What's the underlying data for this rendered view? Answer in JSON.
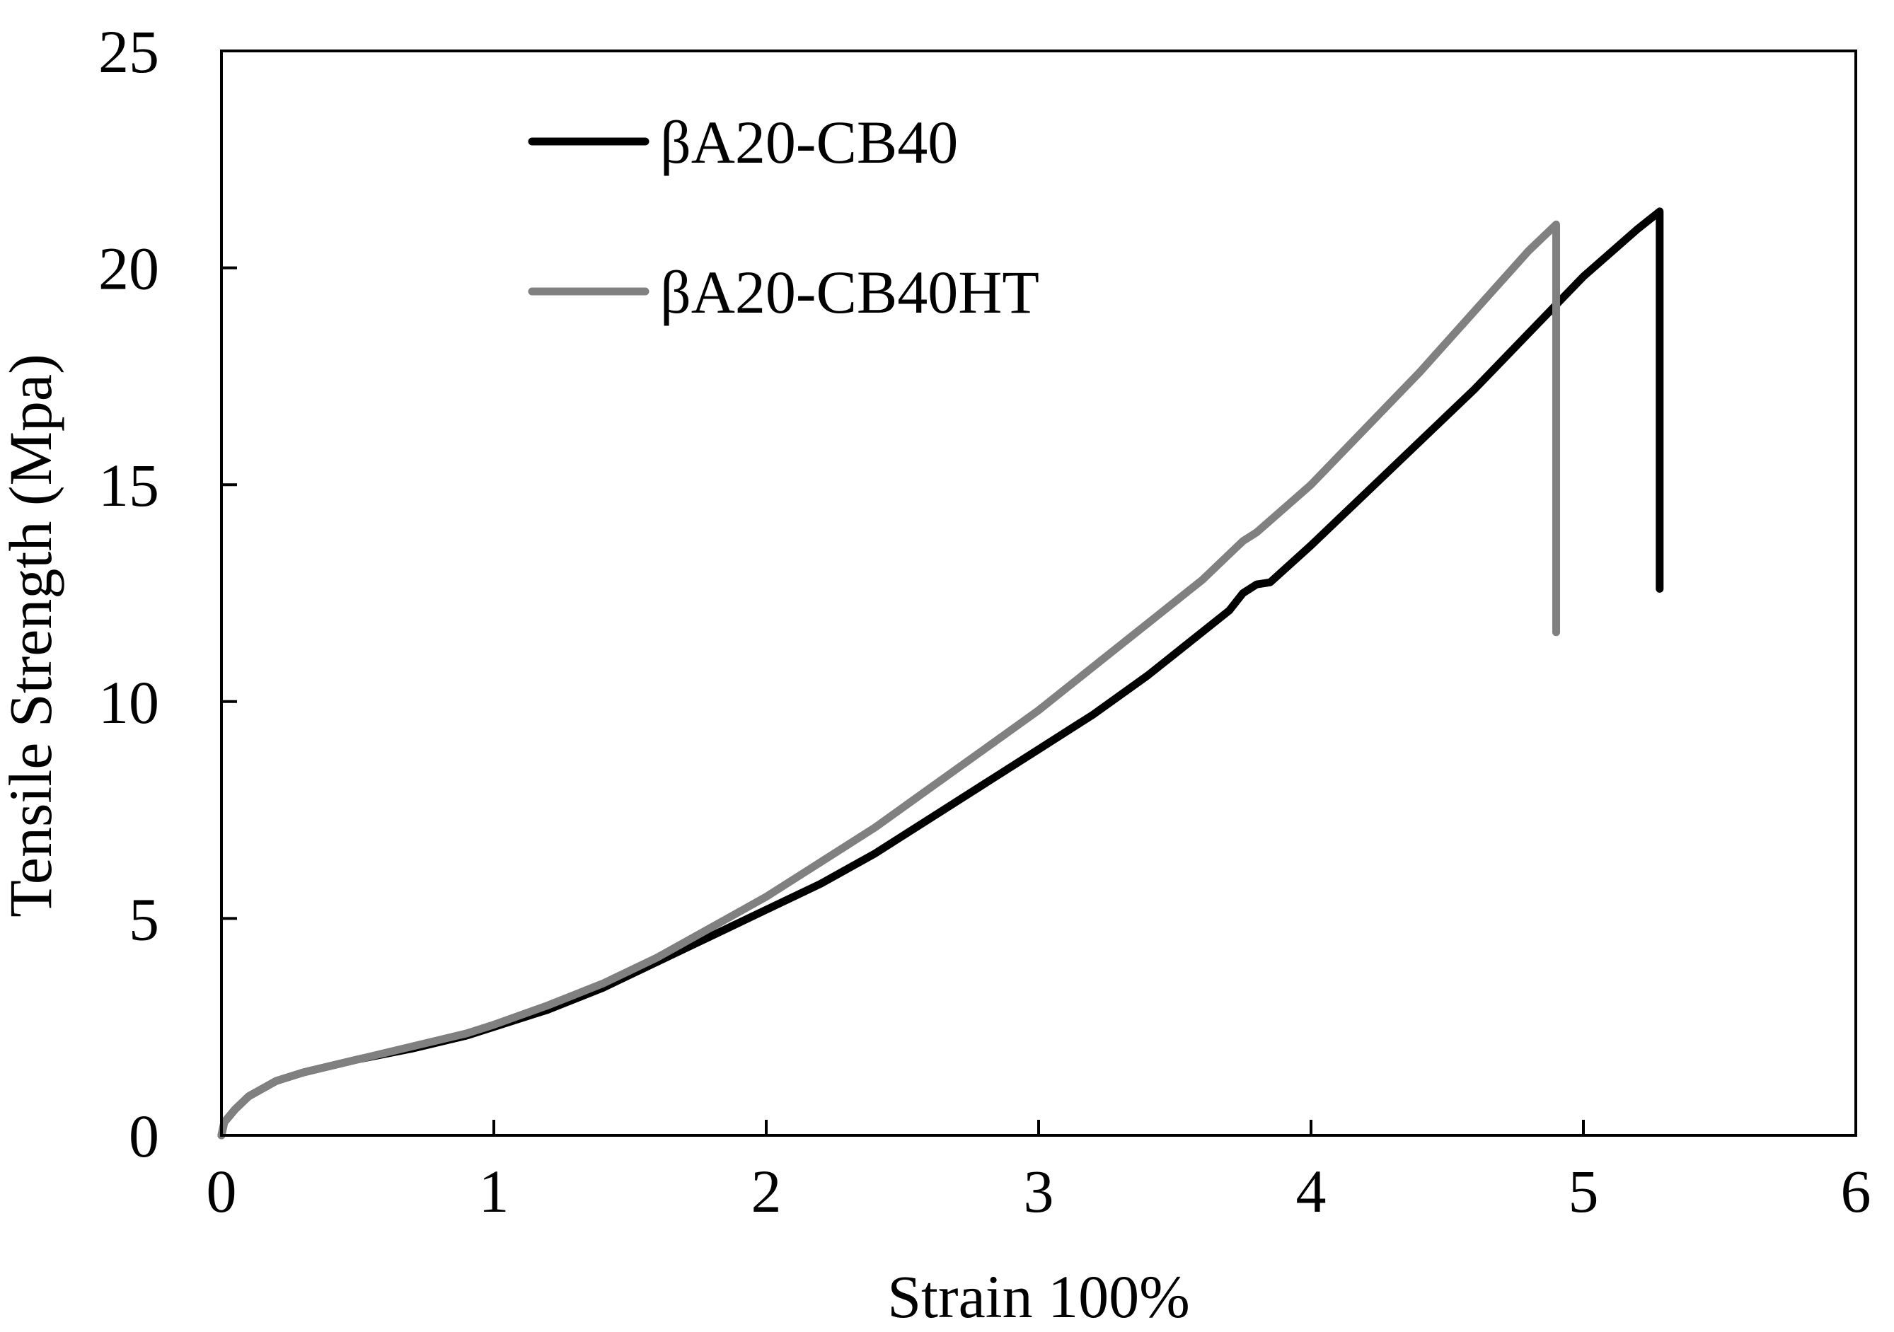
{
  "chart_data": {
    "type": "line",
    "title": "",
    "xlabel": "Strain 100%",
    "ylabel": "Tensile Strength (Mpa)",
    "xlim": [
      0,
      6
    ],
    "ylim": [
      0,
      25
    ],
    "xticks": [
      0,
      1,
      2,
      3,
      4,
      5,
      6
    ],
    "yticks": [
      0,
      5,
      10,
      15,
      20,
      25
    ],
    "x_tick_labels": [
      "0",
      "1",
      "2",
      "3",
      "4",
      "5",
      "6"
    ],
    "y_tick_labels": [
      "0",
      "5",
      "10",
      "15",
      "20",
      "25"
    ],
    "grid": false,
    "legend": "top-left, inside plot",
    "series": [
      {
        "name": "βA20-CB40",
        "color": "#000000",
        "points": [
          [
            0,
            0
          ],
          [
            0.01,
            0.3
          ],
          [
            0.05,
            0.6
          ],
          [
            0.1,
            0.9
          ],
          [
            0.2,
            1.25
          ],
          [
            0.3,
            1.45
          ],
          [
            0.5,
            1.75
          ],
          [
            0.7,
            2.0
          ],
          [
            0.9,
            2.3
          ],
          [
            1.0,
            2.5
          ],
          [
            1.2,
            2.9
          ],
          [
            1.4,
            3.4
          ],
          [
            1.6,
            4.0
          ],
          [
            1.8,
            4.6
          ],
          [
            2.0,
            5.2
          ],
          [
            2.2,
            5.8
          ],
          [
            2.4,
            6.5
          ],
          [
            2.6,
            7.3
          ],
          [
            2.8,
            8.1
          ],
          [
            3.0,
            8.9
          ],
          [
            3.2,
            9.7
          ],
          [
            3.4,
            10.6
          ],
          [
            3.6,
            11.6
          ],
          [
            3.7,
            12.1
          ],
          [
            3.75,
            12.5
          ],
          [
            3.8,
            12.7
          ],
          [
            3.85,
            12.75
          ],
          [
            4.0,
            13.6
          ],
          [
            4.2,
            14.8
          ],
          [
            4.4,
            16.0
          ],
          [
            4.6,
            17.2
          ],
          [
            4.8,
            18.5
          ],
          [
            5.0,
            19.8
          ],
          [
            5.2,
            20.9
          ],
          [
            5.28,
            21.3
          ],
          [
            5.28,
            12.6
          ]
        ]
      },
      {
        "name": "βA20-CB40HT",
        "color": "#808080",
        "points": [
          [
            0,
            0
          ],
          [
            0.01,
            0.3
          ],
          [
            0.05,
            0.6
          ],
          [
            0.1,
            0.9
          ],
          [
            0.2,
            1.25
          ],
          [
            0.3,
            1.45
          ],
          [
            0.5,
            1.75
          ],
          [
            0.7,
            2.05
          ],
          [
            0.9,
            2.35
          ],
          [
            1.0,
            2.55
          ],
          [
            1.2,
            3.0
          ],
          [
            1.4,
            3.5
          ],
          [
            1.6,
            4.1
          ],
          [
            1.8,
            4.8
          ],
          [
            2.0,
            5.5
          ],
          [
            2.2,
            6.3
          ],
          [
            2.4,
            7.1
          ],
          [
            2.6,
            8.0
          ],
          [
            2.8,
            8.9
          ],
          [
            3.0,
            9.8
          ],
          [
            3.2,
            10.8
          ],
          [
            3.4,
            11.8
          ],
          [
            3.6,
            12.8
          ],
          [
            3.7,
            13.4
          ],
          [
            3.75,
            13.7
          ],
          [
            3.8,
            13.9
          ],
          [
            4.0,
            15.0
          ],
          [
            4.2,
            16.3
          ],
          [
            4.4,
            17.6
          ],
          [
            4.6,
            19.0
          ],
          [
            4.8,
            20.4
          ],
          [
            4.9,
            21.0
          ],
          [
            4.9,
            11.6
          ]
        ]
      }
    ]
  }
}
